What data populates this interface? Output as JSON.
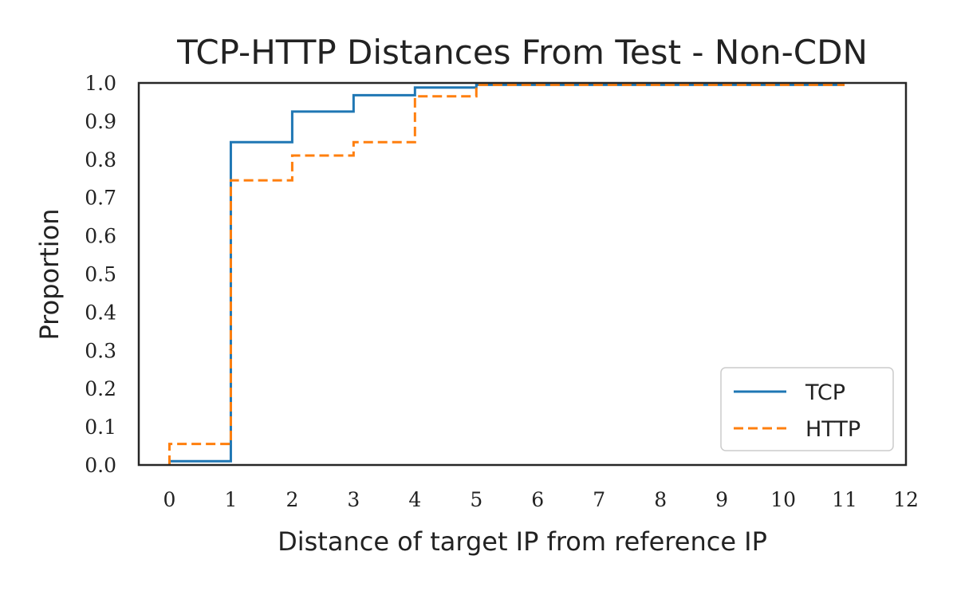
{
  "chart_data": {
    "type": "line",
    "step": "post",
    "title": "TCP-HTTP Distances From Test - Non-CDN",
    "xlabel": "Distance of target IP from reference IP",
    "ylabel": "Proportion",
    "xlim": [
      -0.5,
      12
    ],
    "ylim": [
      0,
      1.0
    ],
    "xticks": [
      "0",
      "1",
      "2",
      "3",
      "4",
      "5",
      "6",
      "7",
      "8",
      "9",
      "10",
      "11",
      "12"
    ],
    "yticks": [
      "0.0",
      "0.1",
      "0.2",
      "0.3",
      "0.4",
      "0.5",
      "0.6",
      "0.7",
      "0.8",
      "0.9",
      "1.0"
    ],
    "grid": false,
    "legend_position": "lower-right",
    "series": [
      {
        "name": "TCP",
        "color": "#1f77b4",
        "style": "solid",
        "x": [
          0,
          1,
          2,
          3,
          4,
          5,
          11
        ],
        "y": [
          0.01,
          0.845,
          0.925,
          0.968,
          0.988,
          0.995,
          0.995
        ]
      },
      {
        "name": "HTTP",
        "color": "#ff7f0e",
        "style": "dashed",
        "x": [
          0,
          1,
          2,
          3,
          4,
          5,
          11
        ],
        "y": [
          0.055,
          0.745,
          0.81,
          0.845,
          0.965,
          0.995,
          0.995
        ]
      }
    ]
  }
}
